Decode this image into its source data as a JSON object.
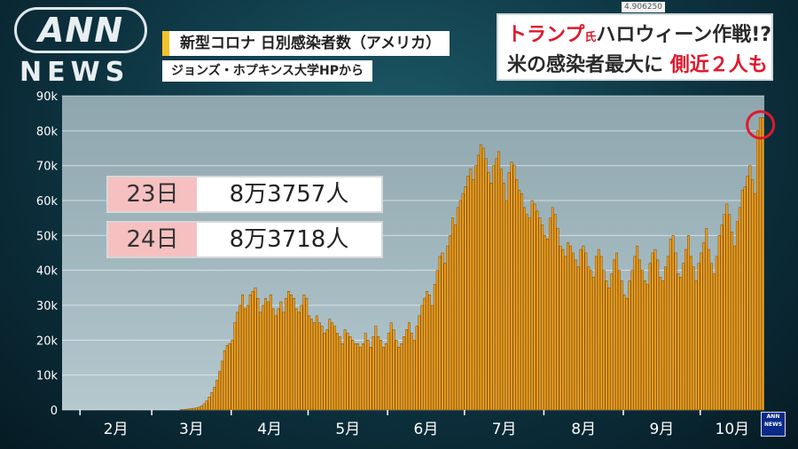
{
  "logo": {
    "top": "ANN",
    "bottom": "NEWS"
  },
  "timestamp": "4.906250",
  "caption": {
    "title": "新型コロナ 日別感染者数（アメリカ）",
    "source": "ジョンズ・ホプキンス大学HPから"
  },
  "headline": {
    "line1_red": "トランプ",
    "line1_red_small": "氏",
    "line1_dark": "ハロウィーン作戦!?",
    "line2_dark": "米の感染者最大に",
    "line2_red": "側近２人も"
  },
  "annotations": [
    {
      "date": "23日",
      "value": "8万3757人"
    },
    {
      "date": "24日",
      "value": "8万3718人"
    }
  ],
  "colors": {
    "bar": "#f0a020",
    "bar_edge": "#7a4b05",
    "highlight": "#e0182d",
    "plot_bg": "#9fb7c0"
  },
  "chart_data": {
    "type": "bar",
    "title": "新型コロナ 日別感染者数（アメリカ）",
    "xlabel": "",
    "ylabel": "",
    "ylim": [
      0,
      90000
    ],
    "yticks": [
      "0",
      "10k",
      "20k",
      "30k",
      "40k",
      "50k",
      "60k",
      "70k",
      "80k",
      "90k"
    ],
    "xticks": [
      "2月",
      "3月",
      "4月",
      "5月",
      "6月",
      "7月",
      "8月",
      "9月",
      "10月"
    ],
    "grid": true,
    "highlight_last": true,
    "values": [
      0,
      0,
      0,
      0,
      0,
      0,
      0,
      0,
      0,
      0,
      0,
      0,
      0,
      0,
      0,
      0,
      0,
      0,
      0,
      0,
      0,
      0,
      0,
      0,
      0,
      0,
      0,
      0,
      0,
      0,
      0,
      0,
      0,
      0,
      0,
      0,
      0,
      0,
      0,
      0,
      0,
      0,
      0,
      0,
      0,
      0,
      100,
      100,
      200,
      300,
      400,
      500,
      600,
      800,
      1200,
      1800,
      2600,
      3700,
      5000,
      6500,
      8500,
      11000,
      14000,
      17000,
      18500,
      19000,
      20000,
      25000,
      28000,
      30000,
      33000,
      29000,
      30000,
      33000,
      34000,
      35000,
      32000,
      28000,
      30000,
      32000,
      31000,
      33000,
      29000,
      27000,
      29000,
      31000,
      28000,
      32000,
      34000,
      33000,
      32000,
      29000,
      28000,
      30000,
      33000,
      32000,
      27000,
      26000,
      25000,
      27000,
      25000,
      24000,
      22000,
      23000,
      26000,
      25000,
      24000,
      22000,
      21000,
      19000,
      23000,
      22000,
      21000,
      20000,
      19000,
      19000,
      18000,
      19000,
      22000,
      20000,
      18000,
      21000,
      24000,
      21000,
      20000,
      18000,
      19000,
      22000,
      25000,
      23000,
      20000,
      18000,
      19000,
      21000,
      23000,
      25000,
      22000,
      20000,
      24000,
      27000,
      30000,
      32000,
      34000,
      33000,
      30000,
      36000,
      40000,
      44000,
      45000,
      42000,
      47000,
      50000,
      55000,
      53000,
      58000,
      60000,
      62000,
      64000,
      67000,
      69000,
      66000,
      70000,
      73000,
      76000,
      75000,
      72000,
      68000,
      65000,
      70000,
      72000,
      74000,
      69000,
      65000,
      60000,
      68000,
      71000,
      70000,
      66000,
      63000,
      62000,
      58000,
      56000,
      55000,
      60000,
      59000,
      57000,
      55000,
      53000,
      50000,
      49000,
      55000,
      58000,
      56000,
      52000,
      47000,
      46000,
      44000,
      48000,
      47000,
      45000,
      43000,
      41000,
      46000,
      47000,
      45000,
      41000,
      40000,
      38000,
      44000,
      46000,
      44000,
      40000,
      37000,
      35000,
      39000,
      43000,
      45000,
      40000,
      37000,
      33000,
      32000,
      37000,
      40000,
      44000,
      47000,
      43000,
      40000,
      37000,
      36000,
      42000,
      45000,
      46000,
      43000,
      38000,
      37000,
      41000,
      44000,
      49000,
      50000,
      45000,
      39000,
      38000,
      42000,
      46000,
      50000,
      44000,
      41000,
      37000,
      42000,
      45000,
      48000,
      52000,
      46000,
      42000,
      39000,
      44000,
      50000,
      53000,
      56000,
      59000,
      56000,
      51000,
      47000,
      54000,
      58000,
      63000,
      64000,
      67000,
      70000,
      66000,
      62000,
      80000,
      83757,
      83718
    ]
  }
}
